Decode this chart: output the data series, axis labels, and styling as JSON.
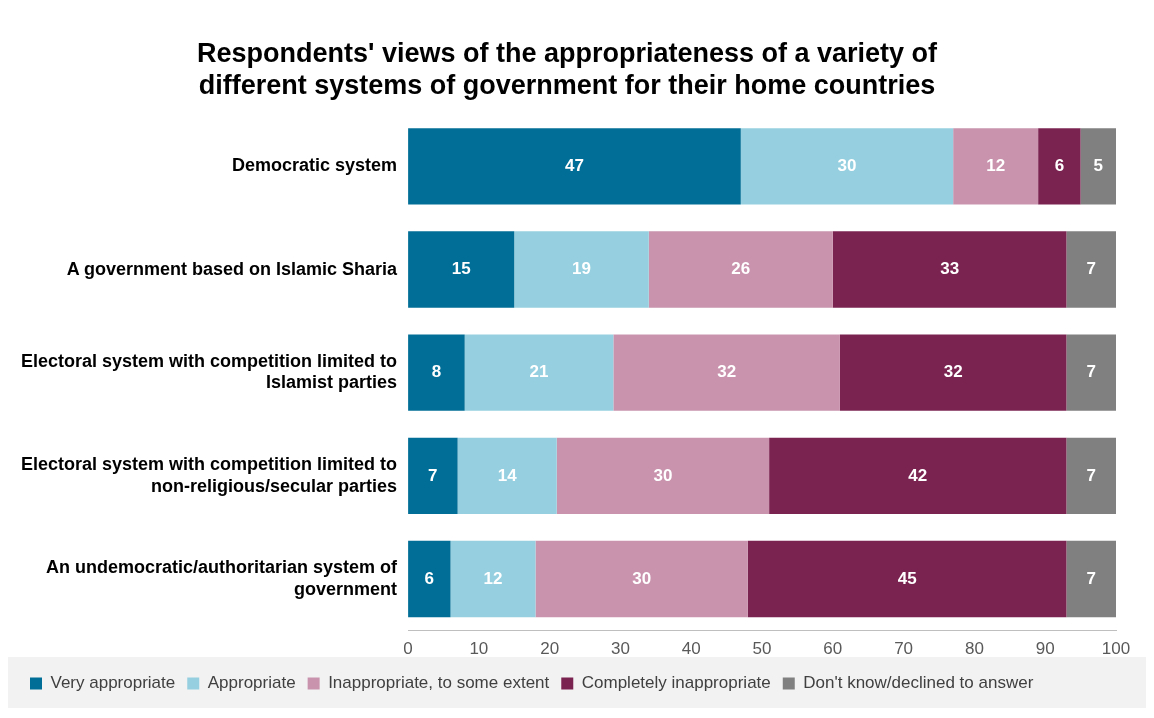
{
  "chart_data": {
    "type": "bar",
    "orientation": "horizontal",
    "stacked": true,
    "title": "Respondents' views of the appropriateness of a variety of different systems of government for their home countries",
    "categories": [
      "Democratic system",
      "A government based on Islamic Sharia",
      "Electoral system with competition limited to Islamist parties",
      "Electoral system with competition limited to non-religious/secular parties",
      "An undemocratic/authoritarian system of government"
    ],
    "series": [
      {
        "name": "Very appropriate",
        "color": "#006e96",
        "values": [
          47,
          15,
          8,
          7,
          6
        ]
      },
      {
        "name": "Appropriate",
        "color": "#96d0e0",
        "values": [
          30,
          19,
          21,
          14,
          12
        ]
      },
      {
        "name": "Inappropriate, to some extent",
        "color": "#c993ad",
        "values": [
          12,
          26,
          32,
          30,
          30
        ]
      },
      {
        "name": "Completely inappropriate",
        "color": "#7b2350",
        "values": [
          6,
          33,
          32,
          42,
          45
        ]
      },
      {
        "name": "Don't know/declined to answer",
        "color": "#808080",
        "values": [
          5,
          7,
          7,
          7,
          7
        ]
      }
    ],
    "xlim": [
      0,
      100
    ],
    "xticks": [
      0,
      10,
      20,
      30,
      40,
      50,
      60,
      70,
      80,
      90,
      100
    ],
    "data_labels": true,
    "grid": false,
    "legend": "bottom"
  }
}
